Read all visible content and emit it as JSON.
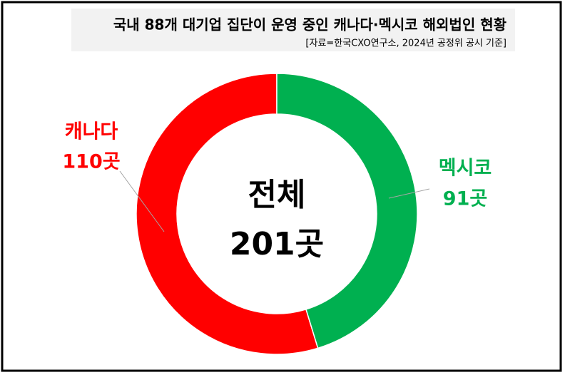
{
  "chart_data": {
    "type": "donut",
    "title": "국내 88개 대기업 집단이 운영 중인 캐나다·멕시코 해외법인 현황",
    "subtitle": "[자료=한국CXO연구소, 2024년 공정위 공시 기준]",
    "categories": [
      "캐나다",
      "멕시코"
    ],
    "values": [
      110,
      91
    ],
    "value_labels": [
      "110곳",
      "91곳"
    ],
    "colors": [
      "#ff0000",
      "#00b050"
    ],
    "center_title": "전체",
    "center_total": {
      "value": 201,
      "label": "201곳"
    }
  }
}
